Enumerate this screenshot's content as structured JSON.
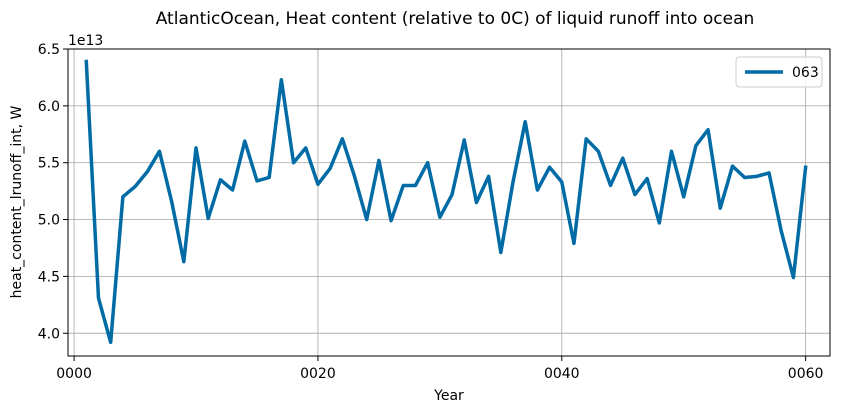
{
  "chart_data": {
    "type": "line",
    "title": "AtlanticOcean, Heat content (relative to 0C) of liquid runoff into ocean",
    "xlabel": "Year",
    "ylabel": "heat_content_lrunoff_int, W",
    "y_offset_label": "1e13",
    "xlim": [
      -0.5,
      62.0
    ],
    "ylim": [
      3.8,
      6.5
    ],
    "x_ticks": [
      0,
      20,
      40,
      60
    ],
    "x_tick_labels": [
      "0000",
      "0020",
      "0040",
      "0060"
    ],
    "y_ticks": [
      4.0,
      4.5,
      5.0,
      5.5,
      6.0,
      6.5
    ],
    "y_tick_labels": [
      "4.0",
      "4.5",
      "5.0",
      "5.5",
      "6.0",
      "6.5"
    ],
    "grid": true,
    "legend_position": "top-right",
    "series": [
      {
        "name": "063",
        "color": "#006ba4",
        "x": [
          1,
          2,
          3,
          4,
          5,
          6,
          7,
          8,
          9,
          10,
          11,
          12,
          13,
          14,
          15,
          16,
          17,
          18,
          19,
          20,
          21,
          22,
          23,
          24,
          25,
          26,
          27,
          28,
          29,
          30,
          31,
          32,
          33,
          34,
          35,
          36,
          37,
          38,
          39,
          40,
          41,
          42,
          43,
          44,
          45,
          46,
          47,
          48,
          49,
          50,
          51,
          52,
          53,
          54,
          55,
          56,
          57,
          58,
          59,
          60
        ],
        "values": [
          6.39,
          4.31,
          3.92,
          5.2,
          5.29,
          5.42,
          5.6,
          5.16,
          4.63,
          5.63,
          5.01,
          5.35,
          5.26,
          5.69,
          5.34,
          5.37,
          6.23,
          5.5,
          5.63,
          5.31,
          5.45,
          5.71,
          5.38,
          5.0,
          5.52,
          4.99,
          5.3,
          5.3,
          5.5,
          5.02,
          5.22,
          5.7,
          5.15,
          5.38,
          4.71,
          5.33,
          5.86,
          5.26,
          5.46,
          5.33,
          4.79,
          5.71,
          5.6,
          5.3,
          5.54,
          5.22,
          5.36,
          4.97,
          5.6,
          5.2,
          5.65,
          5.79,
          5.1,
          5.47,
          5.37,
          5.38,
          5.41,
          4.9,
          4.49,
          5.46
        ]
      }
    ]
  }
}
